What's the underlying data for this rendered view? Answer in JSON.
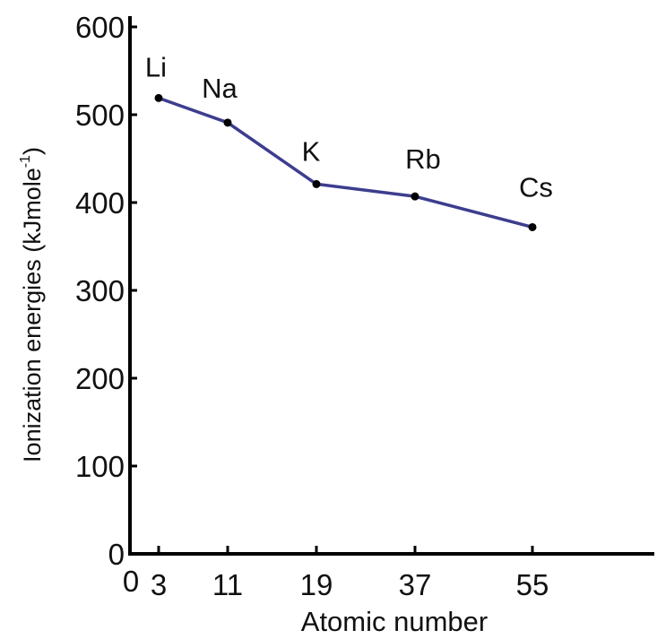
{
  "chart_data": {
    "type": "line",
    "xlabel": "Atomic number",
    "ylabel": "Ionization energies (kJmole",
    "ylabel_superscript": "-1",
    "ylabel_close": ")",
    "ylim": [
      0,
      600
    ],
    "y_ticks": [
      0,
      100,
      200,
      300,
      400,
      500,
      600
    ],
    "x_origin_label": "0",
    "x_tick_labels": [
      "3",
      "11",
      "19",
      "37",
      "55"
    ],
    "grid": false,
    "legend": "none",
    "line_color": "#3d3d8f",
    "axis_color": "#000000",
    "points": [
      {
        "label": "Li",
        "x": "3",
        "y": 519
      },
      {
        "label": "Na",
        "x": "11",
        "y": 491
      },
      {
        "label": "K",
        "x": "19",
        "y": 421
      },
      {
        "label": "Rb",
        "x": "37",
        "y": 407
      },
      {
        "label": "Cs",
        "x": "55",
        "y": 372
      }
    ]
  }
}
